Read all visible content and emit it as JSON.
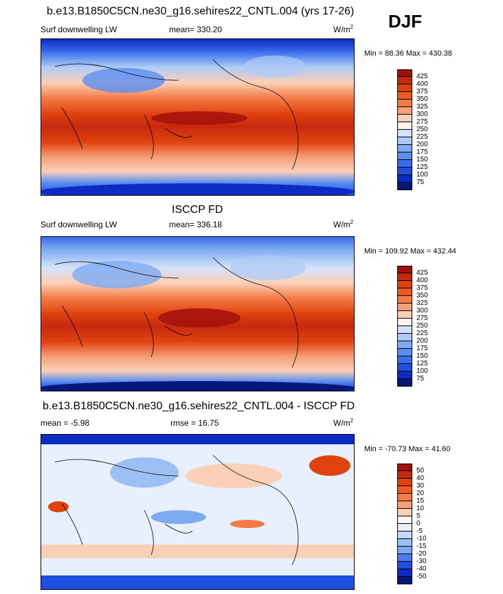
{
  "chart_data": [
    {
      "type": "heatmap",
      "title": "b.e13.B1850C5CN.ne30_g16.sehires22_CNTL.004 (yrs 17-26)",
      "season": "DJF",
      "variable": "Surf downwelling LW",
      "stat_text": "mean= 330.20",
      "units": "W/m",
      "units_exp": "2",
      "minmax": "Min =  88.36 Max = 430.38",
      "colorbar_levels": [
        "425",
        "400",
        "375",
        "350",
        "325",
        "300",
        "275",
        "250",
        "225",
        "200",
        "175",
        "150",
        "125",
        "100",
        "75"
      ],
      "colorbar_colors": [
        "#a50f0b",
        "#c62a0d",
        "#e0420f",
        "#ef5a23",
        "#f47a46",
        "#f79f7a",
        "#fbd0b8",
        "#fff3ea",
        "#d3e3fb",
        "#aecbf7",
        "#7eaaf1",
        "#5a8ef1",
        "#3a6cec",
        "#1f4fe0",
        "#0b2bc4",
        "#06167a"
      ]
    },
    {
      "type": "heatmap",
      "title": "ISCCP FD",
      "variable": "Surf downwelling LW",
      "stat_text": "mean= 336.18",
      "units": "W/m",
      "units_exp": "2",
      "minmax": "Min = 109.92 Max = 432.44",
      "colorbar_levels": [
        "425",
        "400",
        "375",
        "350",
        "325",
        "300",
        "275",
        "250",
        "225",
        "200",
        "175",
        "150",
        "125",
        "100",
        "75"
      ],
      "colorbar_colors": [
        "#a50f0b",
        "#c62a0d",
        "#e0420f",
        "#ef5a23",
        "#f47a46",
        "#f79f7a",
        "#fbd0b8",
        "#fff3ea",
        "#d3e3fb",
        "#aecbf7",
        "#7eaaf1",
        "#5a8ef1",
        "#3a6cec",
        "#1f4fe0",
        "#0b2bc4",
        "#06167a"
      ]
    },
    {
      "type": "heatmap",
      "title": "b.e13.B1850C5CN.ne30_g16.sehires22_CNTL.004 - ISCCP FD",
      "variable_left": "mean =  -5.98",
      "stat_text": "rmse =  16.75",
      "units": "W/m",
      "units_exp": "2",
      "minmax": "Min = -70.73 Max =  41.60",
      "colorbar_levels": [
        "50",
        "40",
        "30",
        "20",
        "15",
        "10",
        "5",
        "0",
        "-5",
        "-10",
        "-15",
        "-20",
        "-30",
        "-40",
        "-50"
      ],
      "colorbar_colors": [
        "#a50f0b",
        "#c62a0d",
        "#e0420f",
        "#ef5a23",
        "#f47a46",
        "#f79f7a",
        "#fbd0b8",
        "#fff3ea",
        "#e8f0fd",
        "#c4d8f9",
        "#9cbff4",
        "#7eaaf1",
        "#4a7cef",
        "#1f4fe0",
        "#0b2bc4",
        "#06167a"
      ]
    }
  ]
}
